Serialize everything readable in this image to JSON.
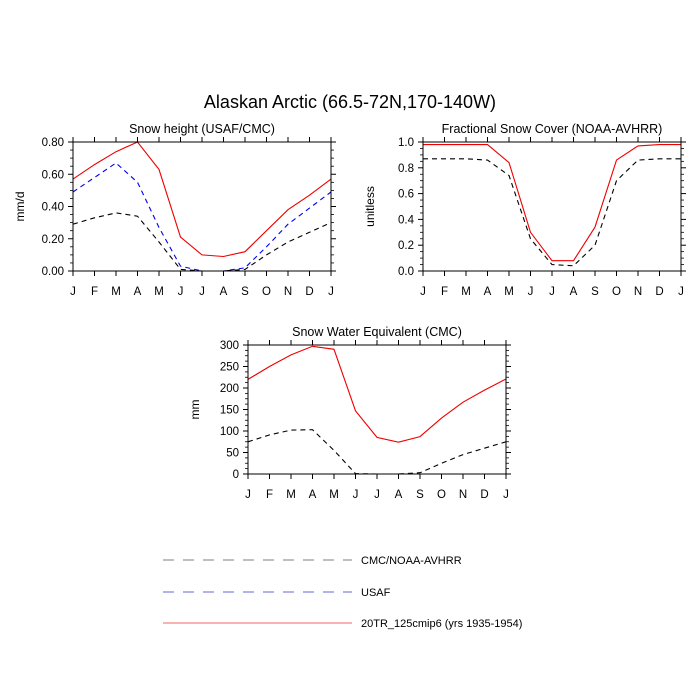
{
  "title": "Alaskan Arctic (66.5-72N,170-140W)",
  "colors": {
    "cmc": "#000000",
    "usaf": "#0000ee",
    "model": "#ee0000"
  },
  "legend": [
    {
      "key": "cmc",
      "label": "CMC/NOAA-AVHRR",
      "dash": "dashed",
      "color": "#000000"
    },
    {
      "key": "usaf",
      "label": "USAF",
      "dash": "dashed",
      "color": "#0000ee"
    },
    {
      "key": "model",
      "label": "20TR_125cmip6 (yrs 1935-1954)",
      "dash": "solid",
      "color": "#ee0000"
    }
  ],
  "chart_data": [
    {
      "type": "line",
      "title": "Snow height (USAF/CMC)",
      "ylabel": "mm/d",
      "xlabel": "",
      "x": [
        "J",
        "F",
        "M",
        "A",
        "M",
        "J",
        "J",
        "A",
        "S",
        "O",
        "N",
        "D",
        "J"
      ],
      "ylim": [
        0,
        0.8
      ],
      "yticks": [
        "0.00",
        "0.20",
        "0.40",
        "0.60",
        "0.80"
      ],
      "ytick_values": [
        0,
        0.2,
        0.4,
        0.6,
        0.8
      ],
      "series": [
        {
          "key": "model",
          "values": [
            0.57,
            0.66,
            0.74,
            0.8,
            0.63,
            0.21,
            0.1,
            0.09,
            0.12,
            0.25,
            0.38,
            0.47,
            0.57
          ]
        },
        {
          "key": "usaf",
          "values": [
            0.49,
            0.58,
            0.67,
            0.55,
            0.27,
            0.03,
            0.0,
            0.0,
            0.02,
            0.15,
            0.29,
            0.39,
            0.49
          ]
        },
        {
          "key": "cmc",
          "values": [
            0.29,
            0.33,
            0.36,
            0.34,
            0.18,
            0.01,
            0.0,
            0.0,
            0.01,
            0.1,
            0.18,
            0.24,
            0.3
          ]
        }
      ]
    },
    {
      "type": "line",
      "title": "Fractional Snow Cover (NOAA-AVHRR)",
      "ylabel": "unitless",
      "xlabel": "",
      "x": [
        "J",
        "F",
        "M",
        "A",
        "M",
        "J",
        "J",
        "A",
        "S",
        "O",
        "N",
        "D",
        "J"
      ],
      "ylim": [
        0,
        1.0
      ],
      "yticks": [
        "0.0",
        "0.2",
        "0.4",
        "0.6",
        "0.8",
        "1.0"
      ],
      "ytick_values": [
        0,
        0.2,
        0.4,
        0.6,
        0.8,
        1.0
      ],
      "series": [
        {
          "key": "model",
          "values": [
            0.98,
            0.98,
            0.98,
            0.98,
            0.84,
            0.3,
            0.08,
            0.08,
            0.34,
            0.86,
            0.97,
            0.98,
            0.98
          ]
        },
        {
          "key": "cmc",
          "values": [
            0.87,
            0.87,
            0.87,
            0.86,
            0.74,
            0.25,
            0.05,
            0.04,
            0.2,
            0.7,
            0.86,
            0.87,
            0.87
          ]
        }
      ]
    },
    {
      "type": "line",
      "title": "Snow Water Equivalent (CMC)",
      "ylabel": "mm",
      "xlabel": "",
      "x": [
        "J",
        "F",
        "M",
        "A",
        "M",
        "J",
        "J",
        "A",
        "S",
        "O",
        "N",
        "D",
        "J"
      ],
      "ylim": [
        0,
        300
      ],
      "yticks": [
        "0",
        "50",
        "100",
        "150",
        "200",
        "250",
        "300"
      ],
      "ytick_values": [
        0,
        50,
        100,
        150,
        200,
        250,
        300
      ],
      "series": [
        {
          "key": "model",
          "values": [
            220,
            250,
            277,
            297,
            290,
            147,
            85,
            74,
            87,
            130,
            167,
            195,
            221
          ]
        },
        {
          "key": "cmc",
          "values": [
            75,
            91,
            102,
            103,
            55,
            1,
            0,
            0,
            3,
            25,
            45,
            60,
            75
          ]
        }
      ]
    }
  ]
}
